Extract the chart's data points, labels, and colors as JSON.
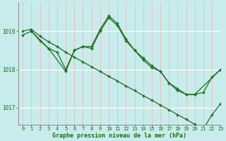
{
  "title": "Graphe pression niveau de la mer (hPa)",
  "background_color": "#c8ecec",
  "grid_color_v": "#f0b8b8",
  "grid_color_h": "#ffffff",
  "line_color": "#1a6e1a",
  "xlim": [
    -0.5,
    23
  ],
  "ylim": [
    1016.55,
    1019.75
  ],
  "yticks": [
    1017,
    1018,
    1019
  ],
  "xticks": [
    0,
    1,
    2,
    3,
    4,
    5,
    6,
    7,
    8,
    9,
    10,
    11,
    12,
    13,
    14,
    15,
    16,
    17,
    18,
    19,
    20,
    21,
    22,
    23
  ],
  "series1_x": [
    0,
    1,
    2,
    3,
    4,
    5,
    6,
    7,
    8,
    9,
    10,
    11,
    12,
    13,
    14,
    15,
    16,
    17,
    18,
    19,
    20,
    21,
    22,
    23
  ],
  "series1_y": [
    1019.0,
    1019.05,
    1018.87,
    1018.72,
    1018.6,
    1018.45,
    1018.32,
    1018.2,
    1018.07,
    1017.95,
    1017.82,
    1017.7,
    1017.57,
    1017.45,
    1017.32,
    1017.2,
    1017.07,
    1016.95,
    1016.82,
    1016.7,
    1016.57,
    1016.45,
    1016.82,
    1017.1
  ],
  "series2_x": [
    0,
    1,
    2,
    3,
    4,
    5,
    6,
    7,
    8,
    9,
    10,
    11,
    12,
    13,
    14,
    15,
    16,
    17,
    18,
    19,
    20,
    21,
    22,
    23
  ],
  "series2_y": [
    1018.9,
    1019.0,
    1018.75,
    1018.55,
    1018.45,
    1018.0,
    1018.5,
    1018.6,
    1018.6,
    1019.05,
    1019.4,
    1019.2,
    1018.8,
    1018.5,
    1018.3,
    1018.1,
    1017.95,
    1017.65,
    1017.5,
    1017.35,
    1017.35,
    1017.4,
    1017.8,
    1018.0
  ],
  "series3_x": [
    1,
    3,
    5,
    6,
    7,
    8,
    9,
    10,
    11,
    12,
    13,
    14,
    15,
    16,
    17,
    18,
    19,
    20,
    23
  ],
  "series3_y": [
    1019.0,
    1018.55,
    1017.95,
    1018.5,
    1018.6,
    1018.55,
    1019.0,
    1019.35,
    1019.15,
    1018.75,
    1018.5,
    1018.25,
    1018.05,
    1017.95,
    1017.65,
    1017.45,
    1017.35,
    1017.35,
    1018.0
  ]
}
